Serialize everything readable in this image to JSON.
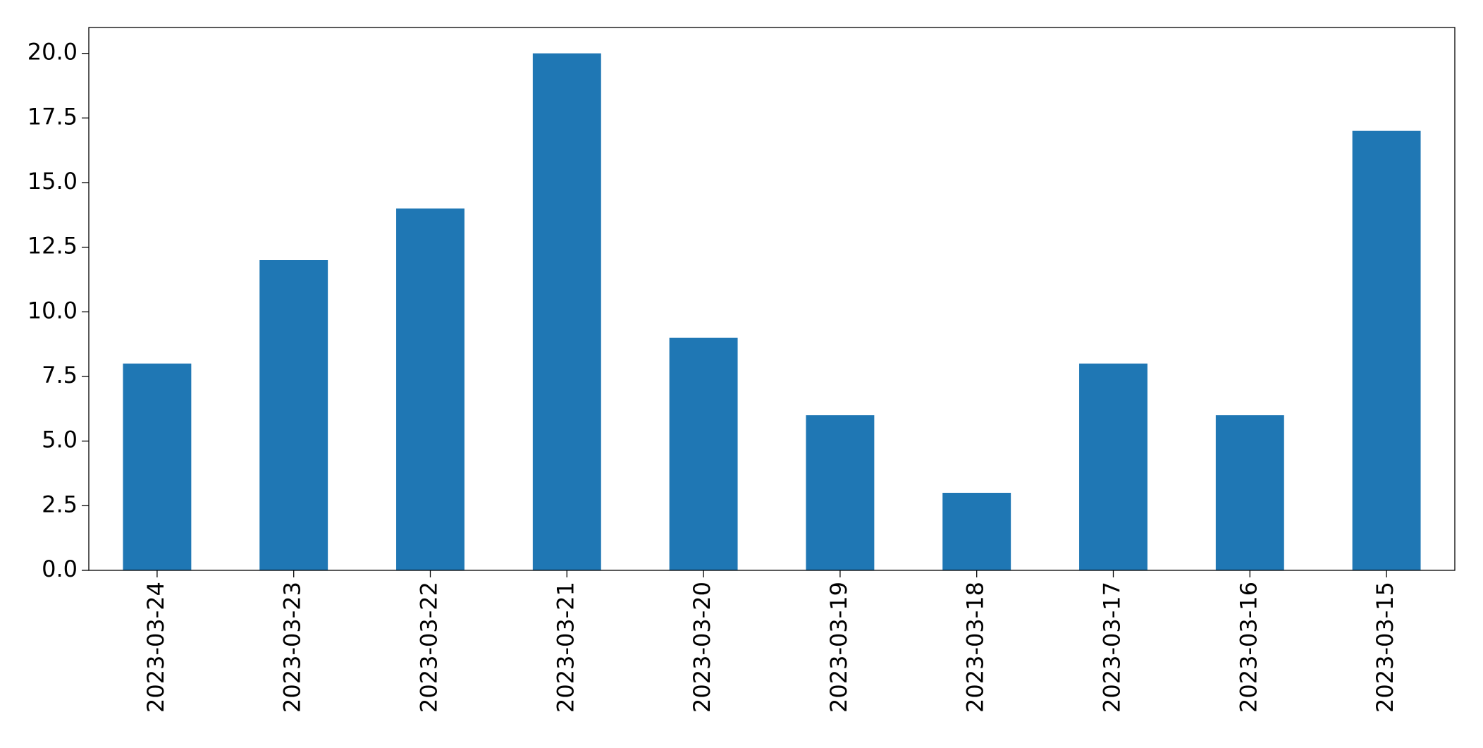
{
  "chart_data": {
    "type": "bar",
    "categories": [
      "2023-03-24",
      "2023-03-23",
      "2023-03-22",
      "2023-03-21",
      "2023-03-20",
      "2023-03-19",
      "2023-03-18",
      "2023-03-17",
      "2023-03-16",
      "2023-03-15"
    ],
    "values": [
      8,
      12,
      14,
      20,
      9,
      6,
      3,
      8,
      6,
      17
    ],
    "color": "#1f77b4",
    "ylim": [
      0,
      21
    ],
    "yticks": [
      {
        "value": 0,
        "label": "0.0"
      },
      2.5,
      {
        "value": 5,
        "label": "5.0"
      },
      7.5,
      {
        "value": 10,
        "label": "10.0"
      },
      12.5,
      {
        "value": 15,
        "label": "15.0"
      },
      17.5,
      {
        "value": 20,
        "label": "20.0"
      }
    ],
    "grid": false
  }
}
